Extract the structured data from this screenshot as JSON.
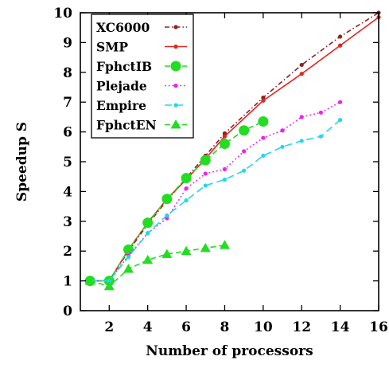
{
  "chart_data": {
    "type": "line",
    "xlabel": "Number of processors",
    "ylabel": "Speedup S",
    "xlim": [
      0.5,
      16
    ],
    "ylim": [
      0,
      10
    ],
    "xticks": [
      2,
      4,
      6,
      8,
      10,
      12,
      14,
      16
    ],
    "yticks": [
      0,
      1,
      2,
      3,
      4,
      5,
      6,
      7,
      8,
      9,
      10
    ],
    "grid": false,
    "legend_position": "top-left",
    "series": [
      {
        "name": "XC6000",
        "color": "#8b2323",
        "line_style": "dash-dot",
        "marker": "small-circle",
        "x": [
          1,
          2,
          3,
          4,
          5,
          6,
          7,
          8,
          10,
          12,
          14,
          16
        ],
        "y": [
          1.0,
          1.0,
          2.0,
          2.9,
          3.7,
          4.45,
          5.2,
          5.95,
          7.15,
          8.25,
          9.2,
          10.0
        ]
      },
      {
        "name": "SMP",
        "color": "#e8231e",
        "line_style": "solid",
        "marker": "small-circle",
        "x": [
          1,
          2,
          3,
          4,
          5,
          6,
          7,
          8,
          10,
          12,
          14,
          16
        ],
        "y": [
          1.0,
          1.0,
          2.05,
          2.95,
          3.75,
          4.4,
          5.1,
          5.85,
          7.05,
          7.95,
          8.9,
          9.85
        ]
      },
      {
        "name": "FphctIB",
        "color": "#22dd22",
        "line_style": "dashed",
        "marker": "large-circle",
        "x": [
          1,
          2,
          3,
          4,
          5,
          6,
          7,
          8,
          9,
          10
        ],
        "y": [
          1.0,
          1.0,
          2.05,
          2.95,
          3.75,
          4.45,
          5.05,
          5.6,
          6.05,
          6.35
        ]
      },
      {
        "name": "Plejade",
        "color": "#ee22ee",
        "line_style": "dotted",
        "marker": "small-circle",
        "x": [
          1,
          2,
          3,
          4,
          5,
          6,
          7,
          8,
          9,
          10,
          11,
          12,
          13,
          14
        ],
        "y": [
          1.0,
          1.0,
          1.85,
          2.6,
          3.1,
          4.1,
          4.6,
          4.75,
          5.35,
          5.8,
          6.05,
          6.5,
          6.65,
          7.0
        ]
      },
      {
        "name": "Empire",
        "color": "#22d8ee",
        "line_style": "long-dash",
        "marker": "small-circle",
        "x": [
          1,
          2,
          3,
          4,
          5,
          6,
          7,
          8,
          9,
          10,
          11,
          12,
          13,
          14
        ],
        "y": [
          1.0,
          1.0,
          1.8,
          2.6,
          3.2,
          3.7,
          4.2,
          4.4,
          4.7,
          5.2,
          5.5,
          5.7,
          5.85,
          6.4
        ]
      },
      {
        "name": "FphctEN",
        "color": "#22dd22",
        "line_style": "dashed",
        "marker": "triangle",
        "x": [
          1,
          2,
          3,
          4,
          5,
          6,
          7,
          8
        ],
        "y": [
          1.0,
          0.82,
          1.4,
          1.7,
          1.9,
          2.0,
          2.1,
          2.2
        ]
      }
    ]
  }
}
